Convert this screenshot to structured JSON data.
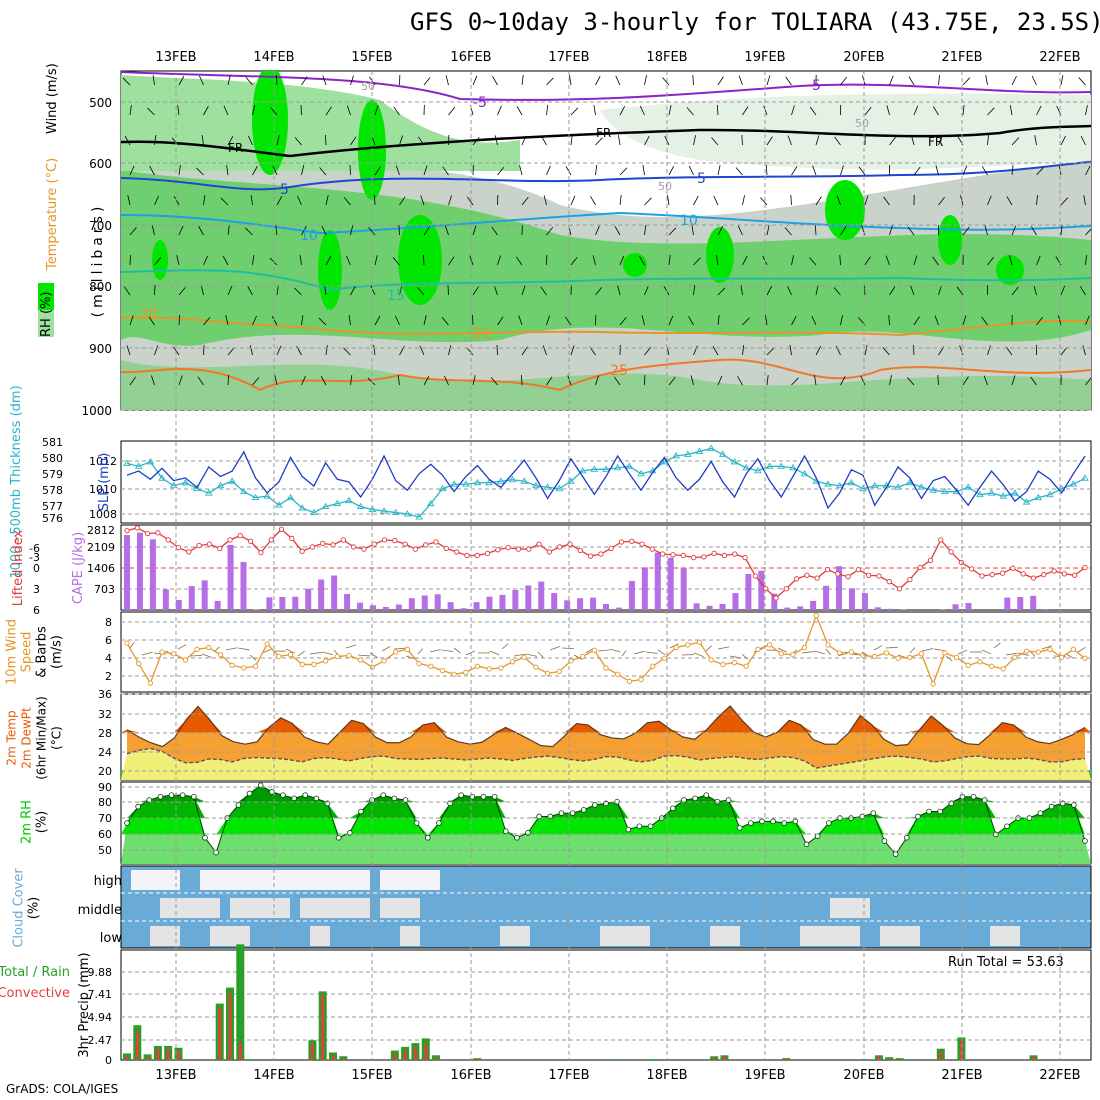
{
  "title": "GFS 0~10day 3-hourly for TOLIARA (43.75E, 23.5S)",
  "footer": "GrADS: COLA/IGES",
  "date_labels": [
    "13FEB",
    "14FEB",
    "15FEB",
    "16FEB",
    "17FEB",
    "18FEB",
    "19FEB",
    "20FEB",
    "21FEB",
    "22FEB"
  ],
  "panels": {
    "upper": {
      "ylabel": "(millibars)",
      "legend": [
        "RH (%)",
        "Temperature (°C)",
        "Wind (m/s)"
      ],
      "levels": [
        "500",
        "600",
        "700",
        "800",
        "900",
        "1000"
      ],
      "contour_labels": [
        "-5",
        "FR",
        "5",
        "10",
        "15",
        "20",
        "25",
        "50",
        "90"
      ]
    },
    "slp": {
      "ylabel_left": "1000~500mb Thickness (dm)",
      "ylabel_right": "SLP (mb)",
      "thickness_ticks": [
        "581",
        "580",
        "579",
        "578",
        "577",
        "576"
      ],
      "slp_ticks": [
        "1012",
        "1010",
        "1008"
      ]
    },
    "cape": {
      "ylabel_left": "Lifted Index",
      "ylabel_right": "CAPE (J/kg)",
      "li_ticks": [
        "-6",
        "-3",
        "0",
        "3",
        "6"
      ],
      "cape_ticks": [
        "2812",
        "2109",
        "1406",
        "703"
      ]
    },
    "wind": {
      "ylabel": [
        "10m Wind",
        "Speed",
        "& Barbs",
        "(m/s)"
      ],
      "ticks": [
        "8",
        "6",
        "4",
        "2"
      ]
    },
    "temp": {
      "ylabel": [
        "2m Temp",
        "2m DewPt",
        "(6hr Min/Max)",
        "(°C)"
      ],
      "ticks": [
        "36",
        "32",
        "28",
        "24",
        "20"
      ]
    },
    "rh": {
      "ylabel": [
        "2m RH",
        "(%)"
      ],
      "ticks": [
        "90",
        "80",
        "70",
        "60",
        "50"
      ]
    },
    "cloud": {
      "ylabel": [
        "Cloud Cover",
        "(%)"
      ],
      "levels": [
        "high",
        "middle",
        "low"
      ]
    },
    "precip": {
      "ylabel": [
        "Total / Rain",
        "Convective",
        "3hr Precip (mm)"
      ],
      "ticks": [
        "9.88",
        "7.41",
        "4.94",
        "2.47",
        "0"
      ],
      "run_total": "Run Total = 53.63"
    }
  },
  "colors": {
    "slp": "#1e3cc8",
    "thickness": "#2ab4c8",
    "lifted_index": "#e03c3c",
    "cape": "#b46ee6",
    "wind": "#e69628",
    "temp_max": "#e65a00",
    "temp_mid": "#f5a030",
    "dewpoint": "#f0f078",
    "rh": "#00c800",
    "cloud_sky": "#6aaad6",
    "cloud": "#e4e4e4",
    "precip_total": "#28a028",
    "precip_conv": "#e04040"
  },
  "chart_data": [
    {
      "type": "line",
      "name": "SLP",
      "ylim": [
        1007,
        1013
      ],
      "values": [
        1010.5,
        1010.8,
        1010.2,
        1011.0,
        1010.1,
        1010.3,
        1009.6,
        1011.1,
        1010.4,
        1010.8,
        1012.2,
        1010.3,
        1009.2,
        1010.0,
        1011.8,
        1010.4,
        1009.7,
        1011.4,
        1010.2,
        1010.0,
        1008.9,
        1010.2,
        1011.9,
        1010.1,
        1009.4,
        1010.6,
        1011.3,
        1010.5,
        1009.3,
        1010.4,
        1011.2,
        1010.2,
        1009.6,
        1010.6,
        1011.6,
        1010.3,
        1008.8,
        1010.1,
        1011.7,
        1010.4,
        1009.1,
        1010.4,
        1011.9,
        1010.6,
        1009.4,
        1010.7,
        1011.8,
        1010.3,
        1009.4,
        1010.2,
        1011.5,
        1010.0,
        1008.9,
        1010.6,
        1011.7,
        1010.1,
        1008.9,
        1010.4,
        1011.9,
        1010.3,
        1008.1,
        1009.2,
        1010.9,
        1010.5,
        1008.3,
        1009.6,
        1011.1,
        1010.3,
        1008.8,
        1010.1,
        1010.4,
        1009.4,
        1008.3,
        1009.6,
        1010.8,
        1009.8,
        1008.6,
        1009.3,
        1010.8,
        1010.2,
        1009.2,
        1010.6,
        1011.9
      ]
    },
    {
      "type": "line",
      "name": "1000~500mb Thickness",
      "ylim": [
        575.8,
        581.3
      ],
      "values": [
        579.8,
        579.6,
        579.9,
        578.8,
        578.3,
        578.5,
        578.1,
        577.8,
        578.3,
        578.6,
        577.9,
        577.5,
        577.6,
        577.0,
        577.5,
        576.8,
        576.5,
        576.9,
        577.1,
        577.3,
        576.9,
        576.7,
        576.6,
        576.5,
        576.4,
        576.2,
        577.1,
        578.1,
        578.4,
        578.4,
        578.5,
        578.5,
        578.6,
        578.7,
        578.6,
        578.3,
        578.2,
        578.1,
        578.6,
        579.3,
        579.4,
        579.4,
        579.5,
        579.6,
        579.1,
        579.3,
        579.9,
        580.3,
        580.4,
        580.6,
        580.8,
        580.4,
        579.9,
        579.5,
        579.3,
        579.6,
        579.6,
        579.5,
        579.1,
        578.6,
        578.4,
        578.3,
        578.5,
        578.1,
        578.3,
        578.3,
        578.2,
        578.5,
        578.2,
        578.0,
        577.9,
        577.9,
        578.2,
        577.7,
        577.8,
        577.6,
        577.8,
        577.2,
        577.5,
        577.7,
        578.1,
        578.4,
        578.8
      ]
    },
    {
      "type": "line",
      "name": "Lifted Index",
      "ylim": [
        6,
        -6
      ],
      "values": [
        -5.2,
        -5.6,
        -4.8,
        -4.9,
        -3.9,
        -2.8,
        -2.2,
        -3.1,
        -3.3,
        -2.7,
        -3.9,
        -4.5,
        -3.7,
        -2.1,
        -3.9,
        -5.4,
        -4.1,
        -2.3,
        -2.9,
        -3.4,
        -3.2,
        -3.9,
        -2.9,
        -2.6,
        -3.3,
        -3.9,
        -3.8,
        -3.3,
        -2.6,
        -3.2,
        -3.6,
        -2.7,
        -2.2,
        -1.7,
        -1.7,
        -2.0,
        -2.5,
        -2.8,
        -2.6,
        -2.6,
        -3.3,
        -2.2,
        -2.9,
        -3.3,
        -2.4,
        -1.6,
        -1.9,
        -2.7,
        -3.6,
        -3.7,
        -3.3,
        -2.6,
        -1.9,
        -1.8,
        -1.7,
        -1.4,
        -1.5,
        -2.0,
        -1.7,
        -1.9,
        -1.4,
        1.2,
        3.0,
        4.3,
        3.0,
        1.6,
        1.1,
        1.5,
        0.3,
        0.9,
        1.3,
        0.3,
        1.1,
        1.2,
        2.0,
        3.0,
        1.7,
        0.0,
        -1.0,
        -3.9,
        -2.2,
        -0.7,
        0.2,
        1.2,
        1.0,
        0.8,
        0.1,
        0.9,
        1.5,
        1.0,
        0.5,
        0.9,
        1.1,
        0.0
      ]
    },
    {
      "type": "bar",
      "name": "CAPE",
      "ylim": [
        0,
        2812
      ],
      "values": [
        2480,
        2560,
        2340,
        680,
        330,
        790,
        980,
        300,
        2150,
        1590,
        20,
        420,
        430,
        440,
        700,
        1010,
        1140,
        530,
        240,
        160,
        100,
        180,
        390,
        480,
        520,
        260,
        60,
        260,
        440,
        500,
        660,
        810,
        940,
        560,
        320,
        390,
        410,
        200,
        80,
        960,
        1410,
        1900,
        1730,
        1390,
        220,
        140,
        200,
        560,
        1190,
        1300,
        540,
        80,
        120,
        300,
        800,
        1450,
        720,
        560,
        90,
        40,
        10,
        0,
        0,
        10,
        190,
        230,
        0,
        0,
        410,
        430,
        470,
        30,
        0,
        0,
        0
      ]
    },
    {
      "type": "line",
      "name": "10m Wind Speed",
      "ylim": [
        0,
        9
      ],
      "values": [
        5.5,
        3.2,
        1.0,
        4.5,
        4.3,
        3.6,
        4.8,
        5.0,
        4.2,
        3.0,
        2.7,
        2.9,
        5.4,
        4.0,
        4.2,
        3.1,
        3.1,
        3.5,
        4.0,
        4.1,
        3.6,
        2.8,
        3.5,
        4.5,
        4.8,
        3.2,
        2.9,
        2.4,
        2.0,
        2.2,
        2.9,
        2.6,
        2.7,
        3.4,
        3.9,
        2.8,
        2.1,
        2.3,
        3.5,
        4.0,
        4.7,
        2.7,
        2.0,
        1.2,
        1.4,
        2.9,
        3.8,
        5.0,
        5.3,
        5.6,
        3.6,
        3.1,
        3.3,
        2.9,
        4.8,
        5.3,
        4.3,
        4.2,
        5.0,
        8.6,
        5.3,
        4.4,
        4.5,
        4.1,
        4.0,
        4.4,
        3.8,
        3.9,
        4.3,
        0.9,
        4.4,
        3.9,
        3.0,
        3.4,
        2.9,
        2.6,
        3.9,
        4.6,
        4.5,
        4.8,
        3.9,
        4.8,
        3.8
      ]
    },
    {
      "type": "area",
      "name": "2m Temp",
      "ylim": [
        18,
        36
      ],
      "values": [
        28.5,
        27.0,
        25.8,
        25.0,
        26.8,
        30.6,
        33.4,
        30.6,
        27.3,
        26.0,
        25.5,
        26.0,
        29.0,
        31.0,
        29.8,
        27.0,
        26.0,
        25.5,
        28.0,
        30.5,
        29.8,
        27.0,
        25.8,
        25.8,
        27.0,
        29.5,
        30.0,
        27.0,
        26.0,
        25.5,
        25.9,
        27.5,
        29.0,
        27.8,
        26.5,
        25.2,
        25.0,
        27.2,
        29.8,
        29.5,
        27.5,
        26.8,
        26.6,
        27.8,
        30.0,
        30.3,
        28.5,
        27.0,
        26.5,
        28.5,
        31.2,
        33.5,
        30.5,
        28.0,
        27.0,
        28.0,
        30.5,
        29.5,
        26.5,
        25.5,
        25.5,
        27.8,
        31.5,
        29.5,
        26.5,
        25.2,
        25.4,
        28.5,
        31.4,
        29.4,
        26.8,
        25.6,
        25.4,
        27.5,
        30.0,
        29.5,
        27.0,
        26.0,
        25.6,
        26.5,
        27.5,
        29.0
      ]
    },
    {
      "type": "line",
      "name": "2m DewPt",
      "ylim": [
        18,
        36
      ],
      "values": [
        23.5,
        24.2,
        24.6,
        24.0,
        22.6,
        21.6,
        21.7,
        22.4,
        22.3,
        21.8,
        22.5,
        22.7,
        22.6,
        22.5,
        22.2,
        21.8,
        22.5,
        22.7,
        22.4,
        22.0,
        22.5,
        22.9,
        23.0,
        22.5,
        22.4,
        22.3,
        22.5,
        22.6,
        22.4,
        22.2,
        22.4,
        22.6,
        22.4,
        22.1,
        22.5,
        22.8,
        23.0,
        22.7,
        22.3,
        22.0,
        22.3,
        22.9,
        22.8,
        22.2,
        21.8,
        22.1,
        23.0,
        23.1,
        22.8,
        22.2,
        22.5,
        22.7,
        22.9,
        22.5,
        22.3,
        22.6,
        22.9,
        22.7,
        22.0,
        20.5,
        20.9,
        21.3,
        21.7,
        22.1,
        22.5,
        22.9,
        23.0,
        22.7,
        22.4,
        21.8,
        22.0,
        22.5,
        22.9,
        23.0,
        22.5,
        22.4,
        22.4,
        22.6,
        22.3,
        21.8,
        21.8,
        22.3,
        22.5
      ]
    },
    {
      "type": "area",
      "name": "2m RH",
      "ylim": [
        42,
        92
      ],
      "values": [
        67,
        77,
        81,
        83,
        84,
        84,
        83,
        58,
        49,
        70,
        78,
        85,
        90,
        86,
        84,
        82,
        84,
        82,
        79,
        58,
        61,
        74,
        81,
        84,
        82,
        81,
        67,
        58,
        67,
        79,
        84,
        83,
        83,
        83,
        62,
        58,
        61,
        71,
        71,
        73,
        73,
        75,
        78,
        79,
        80,
        63,
        65,
        65,
        70,
        76,
        81,
        82,
        84,
        80,
        81,
        64,
        67,
        68,
        68,
        67,
        68,
        54,
        59,
        67,
        70,
        70,
        71,
        73,
        56,
        48,
        58,
        71,
        74,
        74,
        79,
        83,
        83,
        81,
        60,
        65,
        70,
        70,
        73,
        77,
        79,
        78,
        56
      ]
    },
    {
      "type": "bar",
      "name": "3hr Precip",
      "ylim": [
        0,
        11.7
      ],
      "total": [
        0.7,
        3.7,
        0.6,
        1.5,
        1.5,
        1.3,
        0,
        0,
        0,
        6.0,
        7.7,
        12.3,
        0.1,
        0,
        0,
        0,
        0,
        0,
        2.1,
        7.3,
        0.8,
        0.4,
        0,
        0,
        0,
        0,
        1.0,
        1.4,
        1.8,
        2.3,
        0.5,
        0,
        0,
        0,
        0.2,
        0,
        0,
        0,
        0,
        0,
        0,
        0,
        0,
        0,
        0,
        0,
        0,
        0,
        0.1,
        0,
        0,
        0.1,
        0,
        0,
        0,
        0,
        0,
        0.4,
        0.5,
        0,
        0,
        0,
        0,
        0,
        0.2,
        0,
        0,
        0,
        0,
        0,
        0,
        0,
        0,
        0.5,
        0.3,
        0.2,
        0,
        0,
        0,
        1.2,
        0,
        2.4,
        0,
        0,
        0,
        0,
        0,
        0,
        0.5,
        0,
        0,
        0,
        0,
        0
      ],
      "convective": [
        0.4,
        3.1,
        0.3,
        1.2,
        1.2,
        1.0,
        0,
        0,
        0,
        5.6,
        7.1,
        1.9,
        0,
        0,
        0,
        0,
        0,
        0,
        1.8,
        7.0,
        0.5,
        0.2,
        0,
        0,
        0,
        0,
        0.6,
        1.0,
        1.4,
        1.8,
        0.3,
        0,
        0,
        0,
        0.1,
        0,
        0,
        0,
        0,
        0,
        0,
        0,
        0,
        0,
        0,
        0,
        0,
        0,
        0,
        0,
        0,
        0,
        0,
        0,
        0,
        0,
        0,
        0.3,
        0.4,
        0,
        0,
        0,
        0,
        0,
        0.1,
        0,
        0,
        0,
        0,
        0,
        0,
        0,
        0,
        0.4,
        0.2,
        0.1,
        0,
        0,
        0,
        0.9,
        0,
        2.1,
        0,
        0,
        0,
        0,
        0,
        0,
        0.4,
        0,
        0,
        0,
        0,
        0
      ]
    }
  ]
}
